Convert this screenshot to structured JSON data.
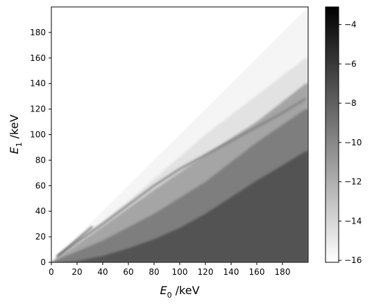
{
  "chart_data": {
    "type": "heatmap",
    "title": "",
    "xlabel": {
      "symbol": "E",
      "subscript": "0",
      "unit": " /keV"
    },
    "ylabel": {
      "symbol": "E",
      "subscript": "1",
      "unit": " /keV"
    },
    "xlim": [
      0,
      200
    ],
    "ylim": [
      0,
      200
    ],
    "xticks": [
      "0",
      "20",
      "40",
      "60",
      "80",
      "100",
      "120",
      "140",
      "160",
      "180"
    ],
    "yticks": [
      "0",
      "20",
      "40",
      "60",
      "80",
      "100",
      "120",
      "140",
      "160",
      "180"
    ],
    "xtick_values": [
      0,
      20,
      40,
      60,
      80,
      100,
      120,
      140,
      160,
      180
    ],
    "ytick_values": [
      0,
      20,
      40,
      60,
      80,
      100,
      120,
      140,
      160,
      180
    ],
    "grid": false,
    "colorbar": {
      "colormap": "gray_r",
      "range": [
        -16.1,
        -3.1
      ],
      "ticks": [
        "−4",
        "−6",
        "−8",
        "−10",
        "−12",
        "−14",
        "−16"
      ],
      "tick_values": [
        -4,
        -6,
        -8,
        -10,
        -12,
        -14,
        -16
      ]
    },
    "structure": {
      "upper_edge_E1_equals_E0": true,
      "background_value": -16.1,
      "dark_lower_region_edge": [
        [
          0,
          0
        ],
        [
          20,
          1
        ],
        [
          40,
          5
        ],
        [
          60,
          11
        ],
        [
          80,
          18
        ],
        [
          100,
          27
        ],
        [
          120,
          38
        ],
        [
          140,
          51
        ],
        [
          160,
          64
        ],
        [
          180,
          76
        ],
        [
          198,
          87
        ]
      ],
      "dark_lower_region_value": -7.3,
      "mid_band_edge": [
        [
          0,
          0
        ],
        [
          40,
          17
        ],
        [
          80,
          38
        ],
        [
          120,
          63
        ],
        [
          160,
          94
        ],
        [
          198,
          120
        ]
      ],
      "mid_band_value": -9.5,
      "upper_band_edge": [
        [
          0,
          0
        ],
        [
          40,
          28
        ],
        [
          80,
          57
        ],
        [
          120,
          84
        ],
        [
          160,
          110
        ],
        [
          198,
          140
        ]
      ],
      "upper_band_value": -11.5,
      "ridge_line": [
        [
          5,
          5
        ],
        [
          20,
          16
        ],
        [
          40,
          30
        ],
        [
          60,
          45
        ],
        [
          80,
          60
        ],
        [
          100,
          73
        ],
        [
          120,
          84
        ],
        [
          140,
          95
        ],
        [
          160,
          106
        ],
        [
          180,
          117
        ],
        [
          198,
          128
        ]
      ]
    }
  }
}
